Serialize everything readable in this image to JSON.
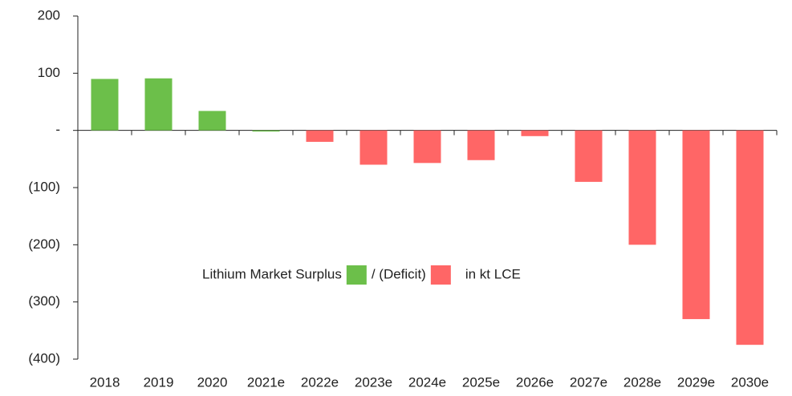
{
  "chart_data": {
    "type": "bar",
    "categories": [
      "2018",
      "2019",
      "2020",
      "2021e",
      "2022e",
      "2023e",
      "2024e",
      "2025e",
      "2026e",
      "2027e",
      "2028e",
      "2029e",
      "2030e"
    ],
    "series": [
      {
        "name": "Lithium Market Surplus",
        "color": "#6cbf4a",
        "values": [
          90,
          91,
          34,
          -2,
          null,
          null,
          null,
          null,
          null,
          null,
          null,
          null,
          null
        ]
      },
      {
        "name": "/ (Deficit)",
        "color": "#ff6666",
        "values": [
          null,
          null,
          null,
          null,
          -20,
          -60,
          -57,
          -52,
          -10,
          -90,
          -200,
          -330,
          -375
        ]
      }
    ],
    "legend_note": "in kt LCE",
    "ylim": [
      -400,
      200
    ],
    "yticks": [
      {
        "value": -400,
        "label": "(400)"
      },
      {
        "value": -300,
        "label": "(300)"
      },
      {
        "value": -200,
        "label": "(200)"
      },
      {
        "value": -100,
        "label": "(100)"
      },
      {
        "value": 0,
        "label": "-"
      },
      100,
      200
    ],
    "grid": false
  }
}
